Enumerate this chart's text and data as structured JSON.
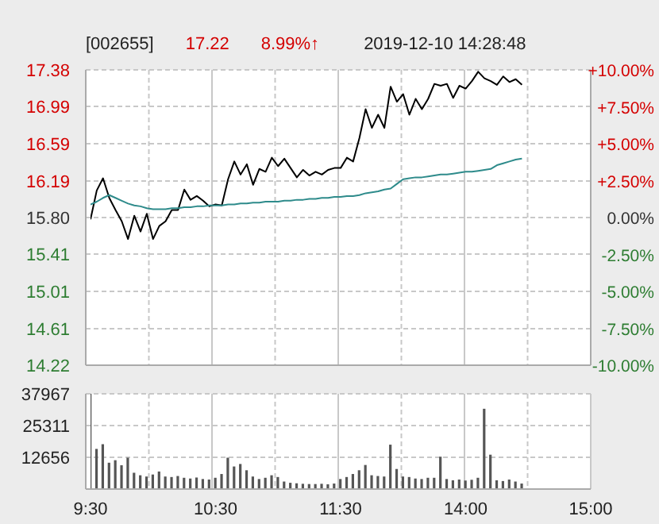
{
  "chart_data": [
    {
      "type": "line",
      "title": "[002655]",
      "annotations": [
        "17.22",
        "8.99%↑",
        "2019-12-10 14:28:48"
      ],
      "categories": [
        null,
        null,
        null,
        null,
        null,
        null,
        null,
        null,
        null,
        null,
        null,
        null,
        null,
        null,
        null,
        null,
        null,
        null,
        null,
        null,
        null,
        null,
        null,
        null,
        null,
        null,
        null,
        null,
        null,
        null,
        null,
        null,
        null,
        null,
        null,
        null,
        null,
        null,
        null,
        null,
        null,
        null,
        null,
        null,
        null,
        null,
        null,
        null,
        null,
        null,
        null,
        null,
        null,
        null,
        null,
        null,
        null,
        null,
        null,
        null,
        null,
        null,
        null,
        null,
        null,
        null,
        null,
        null,
        null,
        null,
        null,
        null,
        null,
        null,
        null,
        null,
        null,
        null,
        null,
        null,
        null
      ],
      "series": [
        {
          "color": "#000000",
          "values": [
            15.78,
            16.09,
            16.22,
            16.01,
            15.88,
            15.76,
            15.57,
            15.82,
            15.65,
            15.84,
            15.57,
            15.71,
            15.76,
            15.88,
            15.88,
            16.1,
            15.99,
            16.03,
            15.98,
            15.92,
            15.94,
            15.93,
            16.21,
            16.4,
            16.26,
            16.37,
            16.15,
            16.32,
            16.29,
            16.44,
            16.35,
            16.43,
            16.33,
            16.23,
            16.31,
            16.25,
            16.29,
            16.26,
            16.31,
            16.33,
            16.33,
            16.44,
            16.4,
            16.65,
            16.96,
            16.76,
            16.9,
            16.76,
            17.2,
            17.04,
            17.12,
            16.9,
            17.07,
            16.96,
            17.07,
            17.23,
            17.21,
            17.23,
            17.08,
            17.21,
            17.18,
            17.26,
            17.36,
            17.29,
            17.26,
            17.22,
            17.31,
            17.25,
            17.28,
            17.22,
            null,
            null,
            null,
            null,
            null,
            null,
            null,
            null,
            null,
            null,
            null
          ]
        },
        {
          "color": "#2e8b8b",
          "values": [
            15.94,
            15.97,
            16.01,
            16.04,
            16.01,
            15.98,
            15.95,
            15.93,
            15.92,
            15.9,
            15.89,
            15.89,
            15.89,
            15.9,
            15.9,
            15.91,
            15.91,
            15.92,
            15.92,
            15.93,
            15.93,
            15.93,
            15.94,
            15.94,
            15.95,
            15.95,
            15.96,
            15.96,
            15.97,
            15.97,
            15.97,
            15.98,
            15.98,
            15.99,
            15.99,
            16.0,
            16.0,
            16.01,
            16.01,
            16.02,
            16.02,
            16.03,
            16.03,
            16.04,
            16.06,
            16.07,
            16.08,
            16.1,
            16.11,
            16.16,
            16.21,
            16.22,
            16.23,
            16.23,
            16.24,
            16.25,
            16.26,
            16.26,
            16.27,
            16.28,
            16.29,
            16.29,
            16.3,
            16.31,
            16.32,
            16.36,
            16.38,
            16.4,
            16.42,
            16.43,
            null,
            null,
            null,
            null,
            null,
            null,
            null,
            null,
            null,
            null,
            null
          ]
        }
      ],
      "ylim": [
        14.22,
        17.38
      ],
      "yticks": [
        14.22,
        14.61,
        15.01,
        15.41,
        {
          "value": 15.8,
          "label": "15.80"
        },
        16.19,
        16.59,
        16.99,
        17.38
      ],
      "y2lim": [
        -10,
        10
      ],
      "y2ticks": [
        {
          "value": -10,
          "label": "-10.00%"
        },
        {
          "value": -7.5,
          "label": "-7.50%"
        },
        {
          "value": -5,
          "label": "-5.00%"
        },
        {
          "value": -2.5,
          "label": "-2.50%"
        },
        {
          "value": 0,
          "label": "0.00%"
        },
        {
          "value": 2.5,
          "label": "+2.50%"
        },
        {
          "value": 5,
          "label": "+5.00%"
        },
        {
          "value": 7.5,
          "label": "+7.50%"
        },
        {
          "value": 10,
          "label": "+10.00%"
        }
      ],
      "grid": true
    },
    {
      "type": "bar",
      "categories": [
        "9:30",
        null,
        null,
        null,
        null,
        null,
        null,
        null,
        null,
        null,
        null,
        null,
        null,
        null,
        null,
        null,
        null,
        null,
        null,
        null,
        "10:30",
        null,
        null,
        null,
        null,
        null,
        null,
        null,
        null,
        null,
        null,
        null,
        null,
        null,
        null,
        null,
        null,
        null,
        null,
        null,
        "11:30",
        null,
        null,
        null,
        null,
        null,
        null,
        null,
        null,
        null,
        null,
        null,
        null,
        null,
        null,
        null,
        null,
        null,
        null,
        null,
        "14:00",
        null,
        null,
        null,
        null,
        null,
        null,
        null,
        null,
        null,
        null,
        null,
        null,
        null,
        null,
        null,
        null,
        null,
        null,
        null,
        "15:00"
      ],
      "series": [
        {
          "color": "#555555",
          "values": [
            37967,
            16000,
            17900,
            10500,
            11500,
            9500,
            12500,
            6500,
            5500,
            5000,
            5800,
            7000,
            5000,
            4800,
            5200,
            4500,
            4200,
            4600,
            4000,
            3800,
            4500,
            6000,
            12500,
            9000,
            10000,
            7500,
            5000,
            4000,
            4500,
            5500,
            4800,
            3000,
            2500,
            2300,
            2100,
            2000,
            2000,
            2100,
            1900,
            2200,
            4000,
            4800,
            6000,
            7500,
            9600,
            5500,
            5200,
            5000,
            17700,
            8000,
            5000,
            4800,
            4200,
            4000,
            4500,
            4500,
            12900,
            4000,
            3500,
            3800,
            3400,
            3700,
            4500,
            32000,
            13700,
            3500,
            3200,
            3800,
            3000,
            2200,
            null,
            null,
            null,
            null,
            null,
            null,
            null,
            null,
            null,
            null,
            null
          ]
        }
      ],
      "ylim": [
        0,
        37967
      ],
      "yticks": [
        12656,
        25311,
        37967
      ],
      "grid": true
    }
  ]
}
